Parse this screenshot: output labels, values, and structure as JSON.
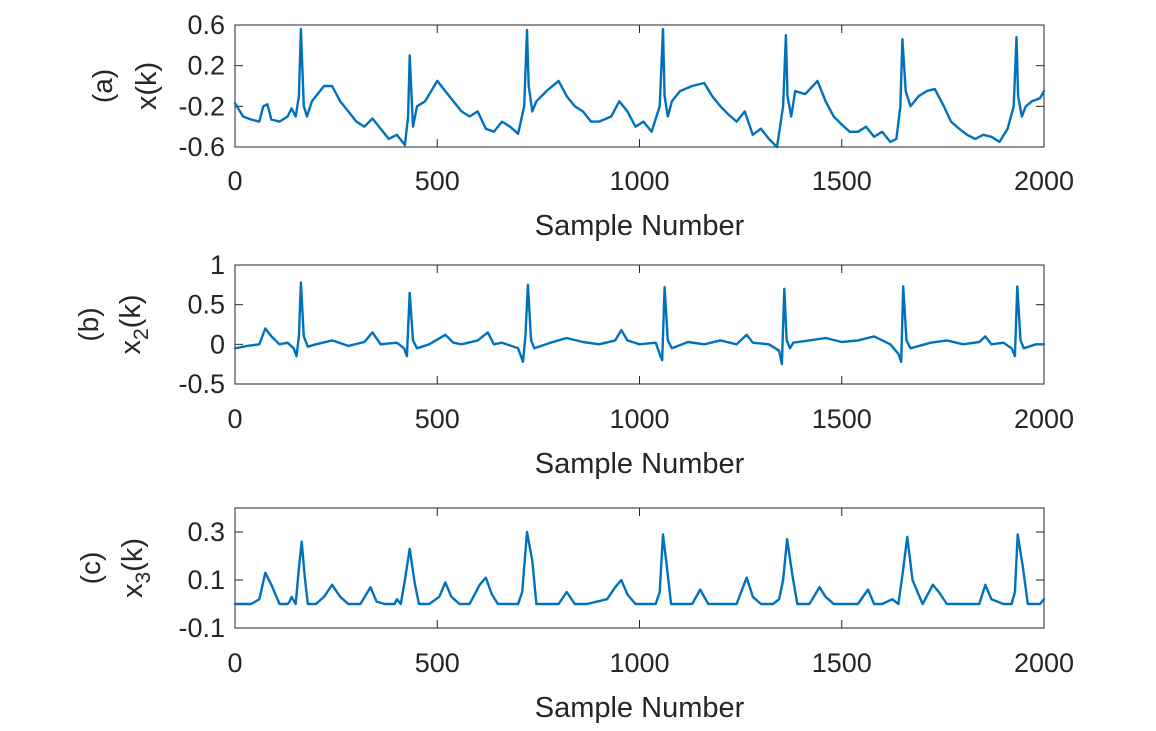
{
  "chart_data": [
    {
      "panel_tag": "(a)",
      "type": "line",
      "xlabel": "Sample Number",
      "ylabel": "x(k)",
      "ylabel_sub": "",
      "xlim": [
        0,
        2000
      ],
      "ylim": [
        -0.6,
        0.6
      ],
      "xticks": [
        0,
        500,
        1000,
        1500,
        2000
      ],
      "yticks": [
        -0.6,
        -0.2,
        0.2,
        0.6
      ],
      "xtick_labels": [
        "0",
        "500",
        "1000",
        "1500",
        "2000"
      ],
      "ytick_labels": [
        "-0.6",
        "-0.2",
        "0.2",
        "0.6"
      ],
      "color": "#0072BD",
      "series": [
        {
          "x": [
            0,
            20,
            40,
            60,
            70,
            80,
            90,
            110,
            130,
            140,
            150,
            158,
            163,
            170,
            178,
            190,
            200,
            220,
            240,
            260,
            280,
            300,
            320,
            340,
            360,
            380,
            400,
            420,
            428,
            432,
            440,
            450,
            470,
            500,
            520,
            540,
            560,
            580,
            600,
            620,
            640,
            660,
            680,
            700,
            715,
            722,
            726,
            735,
            745,
            770,
            800,
            820,
            840,
            860,
            880,
            900,
            930,
            950,
            970,
            990,
            1010,
            1030,
            1050,
            1058,
            1062,
            1070,
            1080,
            1100,
            1130,
            1160,
            1180,
            1200,
            1220,
            1240,
            1260,
            1280,
            1300,
            1320,
            1340,
            1355,
            1362,
            1366,
            1375,
            1385,
            1410,
            1440,
            1460,
            1480,
            1500,
            1520,
            1540,
            1560,
            1580,
            1600,
            1620,
            1635,
            1645,
            1650,
            1658,
            1670,
            1690,
            1710,
            1730,
            1750,
            1770,
            1790,
            1810,
            1830,
            1850,
            1870,
            1890,
            1910,
            1925,
            1932,
            1936,
            1945,
            1955,
            1970,
            1990,
            2000
          ],
          "y": [
            -0.17,
            -0.3,
            -0.33,
            -0.35,
            -0.2,
            -0.18,
            -0.33,
            -0.35,
            -0.3,
            -0.22,
            -0.3,
            -0.1,
            0.56,
            -0.2,
            -0.3,
            -0.15,
            -0.1,
            0.0,
            0.0,
            -0.15,
            -0.25,
            -0.35,
            -0.4,
            -0.32,
            -0.42,
            -0.52,
            -0.48,
            -0.58,
            -0.3,
            0.3,
            -0.4,
            -0.2,
            -0.15,
            0.05,
            -0.05,
            -0.15,
            -0.25,
            -0.3,
            -0.25,
            -0.42,
            -0.45,
            -0.35,
            -0.4,
            -0.47,
            -0.2,
            0.55,
            0.0,
            -0.25,
            -0.15,
            -0.05,
            0.05,
            -0.1,
            -0.2,
            -0.25,
            -0.35,
            -0.35,
            -0.3,
            -0.15,
            -0.25,
            -0.4,
            -0.35,
            -0.45,
            -0.2,
            0.56,
            -0.1,
            -0.3,
            -0.15,
            -0.05,
            0.0,
            0.03,
            -0.1,
            -0.2,
            -0.28,
            -0.35,
            -0.25,
            -0.48,
            -0.42,
            -0.52,
            -0.6,
            -0.2,
            0.5,
            -0.1,
            -0.3,
            -0.05,
            -0.08,
            0.05,
            -0.15,
            -0.3,
            -0.38,
            -0.45,
            -0.45,
            -0.4,
            -0.5,
            -0.45,
            -0.55,
            -0.52,
            -0.2,
            0.46,
            -0.05,
            -0.2,
            -0.1,
            -0.05,
            -0.03,
            -0.18,
            -0.35,
            -0.42,
            -0.48,
            -0.52,
            -0.48,
            -0.5,
            -0.55,
            -0.42,
            -0.2,
            0.48,
            -0.1,
            -0.3,
            -0.2,
            -0.15,
            -0.12,
            -0.05
          ]
        }
      ]
    },
    {
      "panel_tag": "(b)",
      "type": "line",
      "xlabel": "Sample Number",
      "ylabel": "x",
      "ylabel_sub": "2",
      "ylabel_rest": "(k)",
      "xlim": [
        0,
        2000
      ],
      "ylim": [
        -0.5,
        1
      ],
      "xticks": [
        0,
        500,
        1000,
        1500,
        2000
      ],
      "yticks": [
        -0.5,
        0,
        0.5,
        1
      ],
      "xtick_labels": [
        "0",
        "500",
        "1000",
        "1500",
        "2000"
      ],
      "ytick_labels": [
        "-0.5",
        "0",
        "0.5",
        "1"
      ],
      "color": "#0072BD",
      "series": [
        {
          "x": [
            0,
            30,
            60,
            75,
            90,
            110,
            130,
            145,
            152,
            158,
            163,
            170,
            180,
            200,
            240,
            280,
            320,
            340,
            360,
            400,
            418,
            425,
            432,
            440,
            450,
            480,
            520,
            540,
            560,
            600,
            625,
            640,
            660,
            700,
            712,
            718,
            724,
            732,
            740,
            780,
            820,
            860,
            900,
            940,
            955,
            970,
            1000,
            1040,
            1050,
            1056,
            1062,
            1070,
            1080,
            1120,
            1160,
            1200,
            1240,
            1265,
            1280,
            1320,
            1345,
            1352,
            1358,
            1364,
            1372,
            1380,
            1420,
            1460,
            1500,
            1540,
            1580,
            1620,
            1640,
            1647,
            1652,
            1660,
            1670,
            1720,
            1760,
            1800,
            1840,
            1855,
            1870,
            1900,
            1920,
            1928,
            1934,
            1942,
            1950,
            1980,
            2000
          ],
          "y": [
            -0.05,
            -0.02,
            0.0,
            0.2,
            0.1,
            0.0,
            0.02,
            -0.05,
            -0.15,
            0.1,
            0.78,
            0.1,
            -0.03,
            0.0,
            0.05,
            -0.02,
            0.03,
            0.15,
            0.0,
            0.02,
            -0.05,
            -0.15,
            0.65,
            0.05,
            -0.05,
            0.0,
            0.12,
            0.02,
            0.0,
            0.05,
            0.15,
            0.0,
            0.02,
            -0.05,
            -0.22,
            0.1,
            0.75,
            0.05,
            -0.05,
            0.02,
            0.08,
            0.03,
            0.0,
            0.05,
            0.18,
            0.05,
            0.0,
            0.02,
            -0.12,
            -0.2,
            0.72,
            0.05,
            -0.05,
            0.03,
            0.0,
            0.05,
            0.0,
            0.12,
            0.02,
            0.0,
            -0.08,
            -0.25,
            0.7,
            0.05,
            -0.05,
            0.02,
            0.05,
            0.08,
            0.03,
            0.05,
            0.1,
            0.0,
            -0.12,
            -0.22,
            0.73,
            0.05,
            -0.05,
            0.02,
            0.05,
            0.0,
            0.03,
            0.1,
            0.0,
            0.02,
            -0.05,
            -0.15,
            0.73,
            0.05,
            -0.05,
            0.0,
            0.0
          ]
        }
      ]
    },
    {
      "panel_tag": "(c)",
      "type": "line",
      "xlabel": "Sample Number",
      "ylabel": "x",
      "ylabel_sub": "3",
      "ylabel_rest": "(k)",
      "xlim": [
        0,
        2000
      ],
      "ylim": [
        -0.1,
        0.4
      ],
      "xticks": [
        0,
        500,
        1000,
        1500,
        2000
      ],
      "yticks": [
        -0.1,
        0.1,
        0.3
      ],
      "xtick_labels": [
        "0",
        "500",
        "1000",
        "1500",
        "2000"
      ],
      "ytick_labels": [
        "-0.1",
        "0.1",
        "0.3"
      ],
      "color": "#0072BD",
      "series": [
        {
          "x": [
            0,
            40,
            60,
            75,
            90,
            110,
            130,
            135,
            140,
            150,
            158,
            165,
            172,
            180,
            200,
            220,
            240,
            260,
            280,
            310,
            335,
            350,
            370,
            395,
            400,
            410,
            420,
            432,
            445,
            455,
            480,
            505,
            520,
            535,
            555,
            580,
            605,
            620,
            635,
            650,
            680,
            700,
            710,
            722,
            735,
            745,
            770,
            800,
            820,
            840,
            870,
            920,
            940,
            955,
            970,
            990,
            1020,
            1040,
            1050,
            1058,
            1068,
            1078,
            1100,
            1130,
            1150,
            1170,
            1200,
            1240,
            1265,
            1280,
            1300,
            1330,
            1345,
            1355,
            1365,
            1378,
            1390,
            1420,
            1445,
            1460,
            1480,
            1540,
            1565,
            1580,
            1600,
            1625,
            1640,
            1650,
            1662,
            1675,
            1700,
            1725,
            1740,
            1760,
            1800,
            1840,
            1855,
            1870,
            1900,
            1920,
            1928,
            1935,
            1948,
            1960,
            1990,
            2000
          ],
          "y": [
            0.0,
            0.0,
            0.02,
            0.13,
            0.08,
            0.0,
            0.0,
            0.01,
            0.03,
            0.0,
            0.15,
            0.26,
            0.12,
            0.0,
            0.0,
            0.03,
            0.08,
            0.03,
            0.0,
            0.0,
            0.07,
            0.01,
            0.0,
            0.0,
            0.02,
            0.0,
            0.1,
            0.23,
            0.08,
            0.0,
            0.0,
            0.03,
            0.09,
            0.03,
            0.0,
            0.0,
            0.08,
            0.11,
            0.04,
            0.0,
            0.0,
            0.0,
            0.05,
            0.3,
            0.18,
            0.0,
            0.0,
            0.0,
            0.05,
            0.0,
            0.0,
            0.02,
            0.07,
            0.1,
            0.04,
            0.0,
            0.0,
            0.0,
            0.05,
            0.29,
            0.15,
            0.0,
            0.0,
            0.0,
            0.06,
            0.0,
            0.0,
            0.0,
            0.11,
            0.03,
            0.0,
            0.0,
            0.02,
            0.1,
            0.27,
            0.12,
            0.0,
            0.0,
            0.07,
            0.03,
            0.0,
            0.0,
            0.06,
            0.0,
            0.0,
            0.02,
            0.0,
            0.12,
            0.28,
            0.1,
            0.0,
            0.08,
            0.05,
            0.0,
            0.0,
            0.0,
            0.08,
            0.02,
            0.0,
            0.0,
            0.05,
            0.29,
            0.15,
            0.0,
            0.0,
            0.02
          ]
        }
      ]
    }
  ]
}
